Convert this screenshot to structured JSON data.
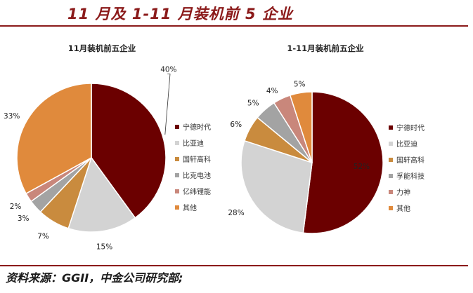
{
  "header": {
    "title": "11 月及 1-11 月装机前 5 企业"
  },
  "footer": {
    "source": "资料来源：GGII，中金公司研究部;"
  },
  "colors": {
    "accent": "#8b1a1a"
  },
  "chart_data": [
    {
      "type": "pie",
      "title": "11月装机前五企业",
      "categories": [
        "宁德时代",
        "比亚迪",
        "国轩高科",
        "比克电池",
        "亿纬锂能",
        "其他"
      ],
      "values": [
        40,
        15,
        7,
        3,
        2,
        33
      ],
      "labels": [
        "40%",
        "15%",
        "7%",
        "3%",
        "2%",
        "33%"
      ],
      "colors": [
        "#6b0000",
        "#d3d3d3",
        "#c98b3e",
        "#a3a3a3",
        "#c9877b",
        "#e08a3c"
      ],
      "legend_position": "right"
    },
    {
      "type": "pie",
      "title": "1-11月装机前五企业",
      "categories": [
        "宁德时代",
        "比亚迪",
        "国轩高科",
        "孚能科技",
        "力神",
        "其他"
      ],
      "values": [
        52,
        28,
        6,
        5,
        4,
        5
      ],
      "labels": [
        "52%",
        "28%",
        "6%",
        "5%",
        "4%",
        "5%"
      ],
      "colors": [
        "#6b0000",
        "#d3d3d3",
        "#c98b3e",
        "#a3a3a3",
        "#c9877b",
        "#e08a3c"
      ],
      "legend_position": "right"
    }
  ]
}
